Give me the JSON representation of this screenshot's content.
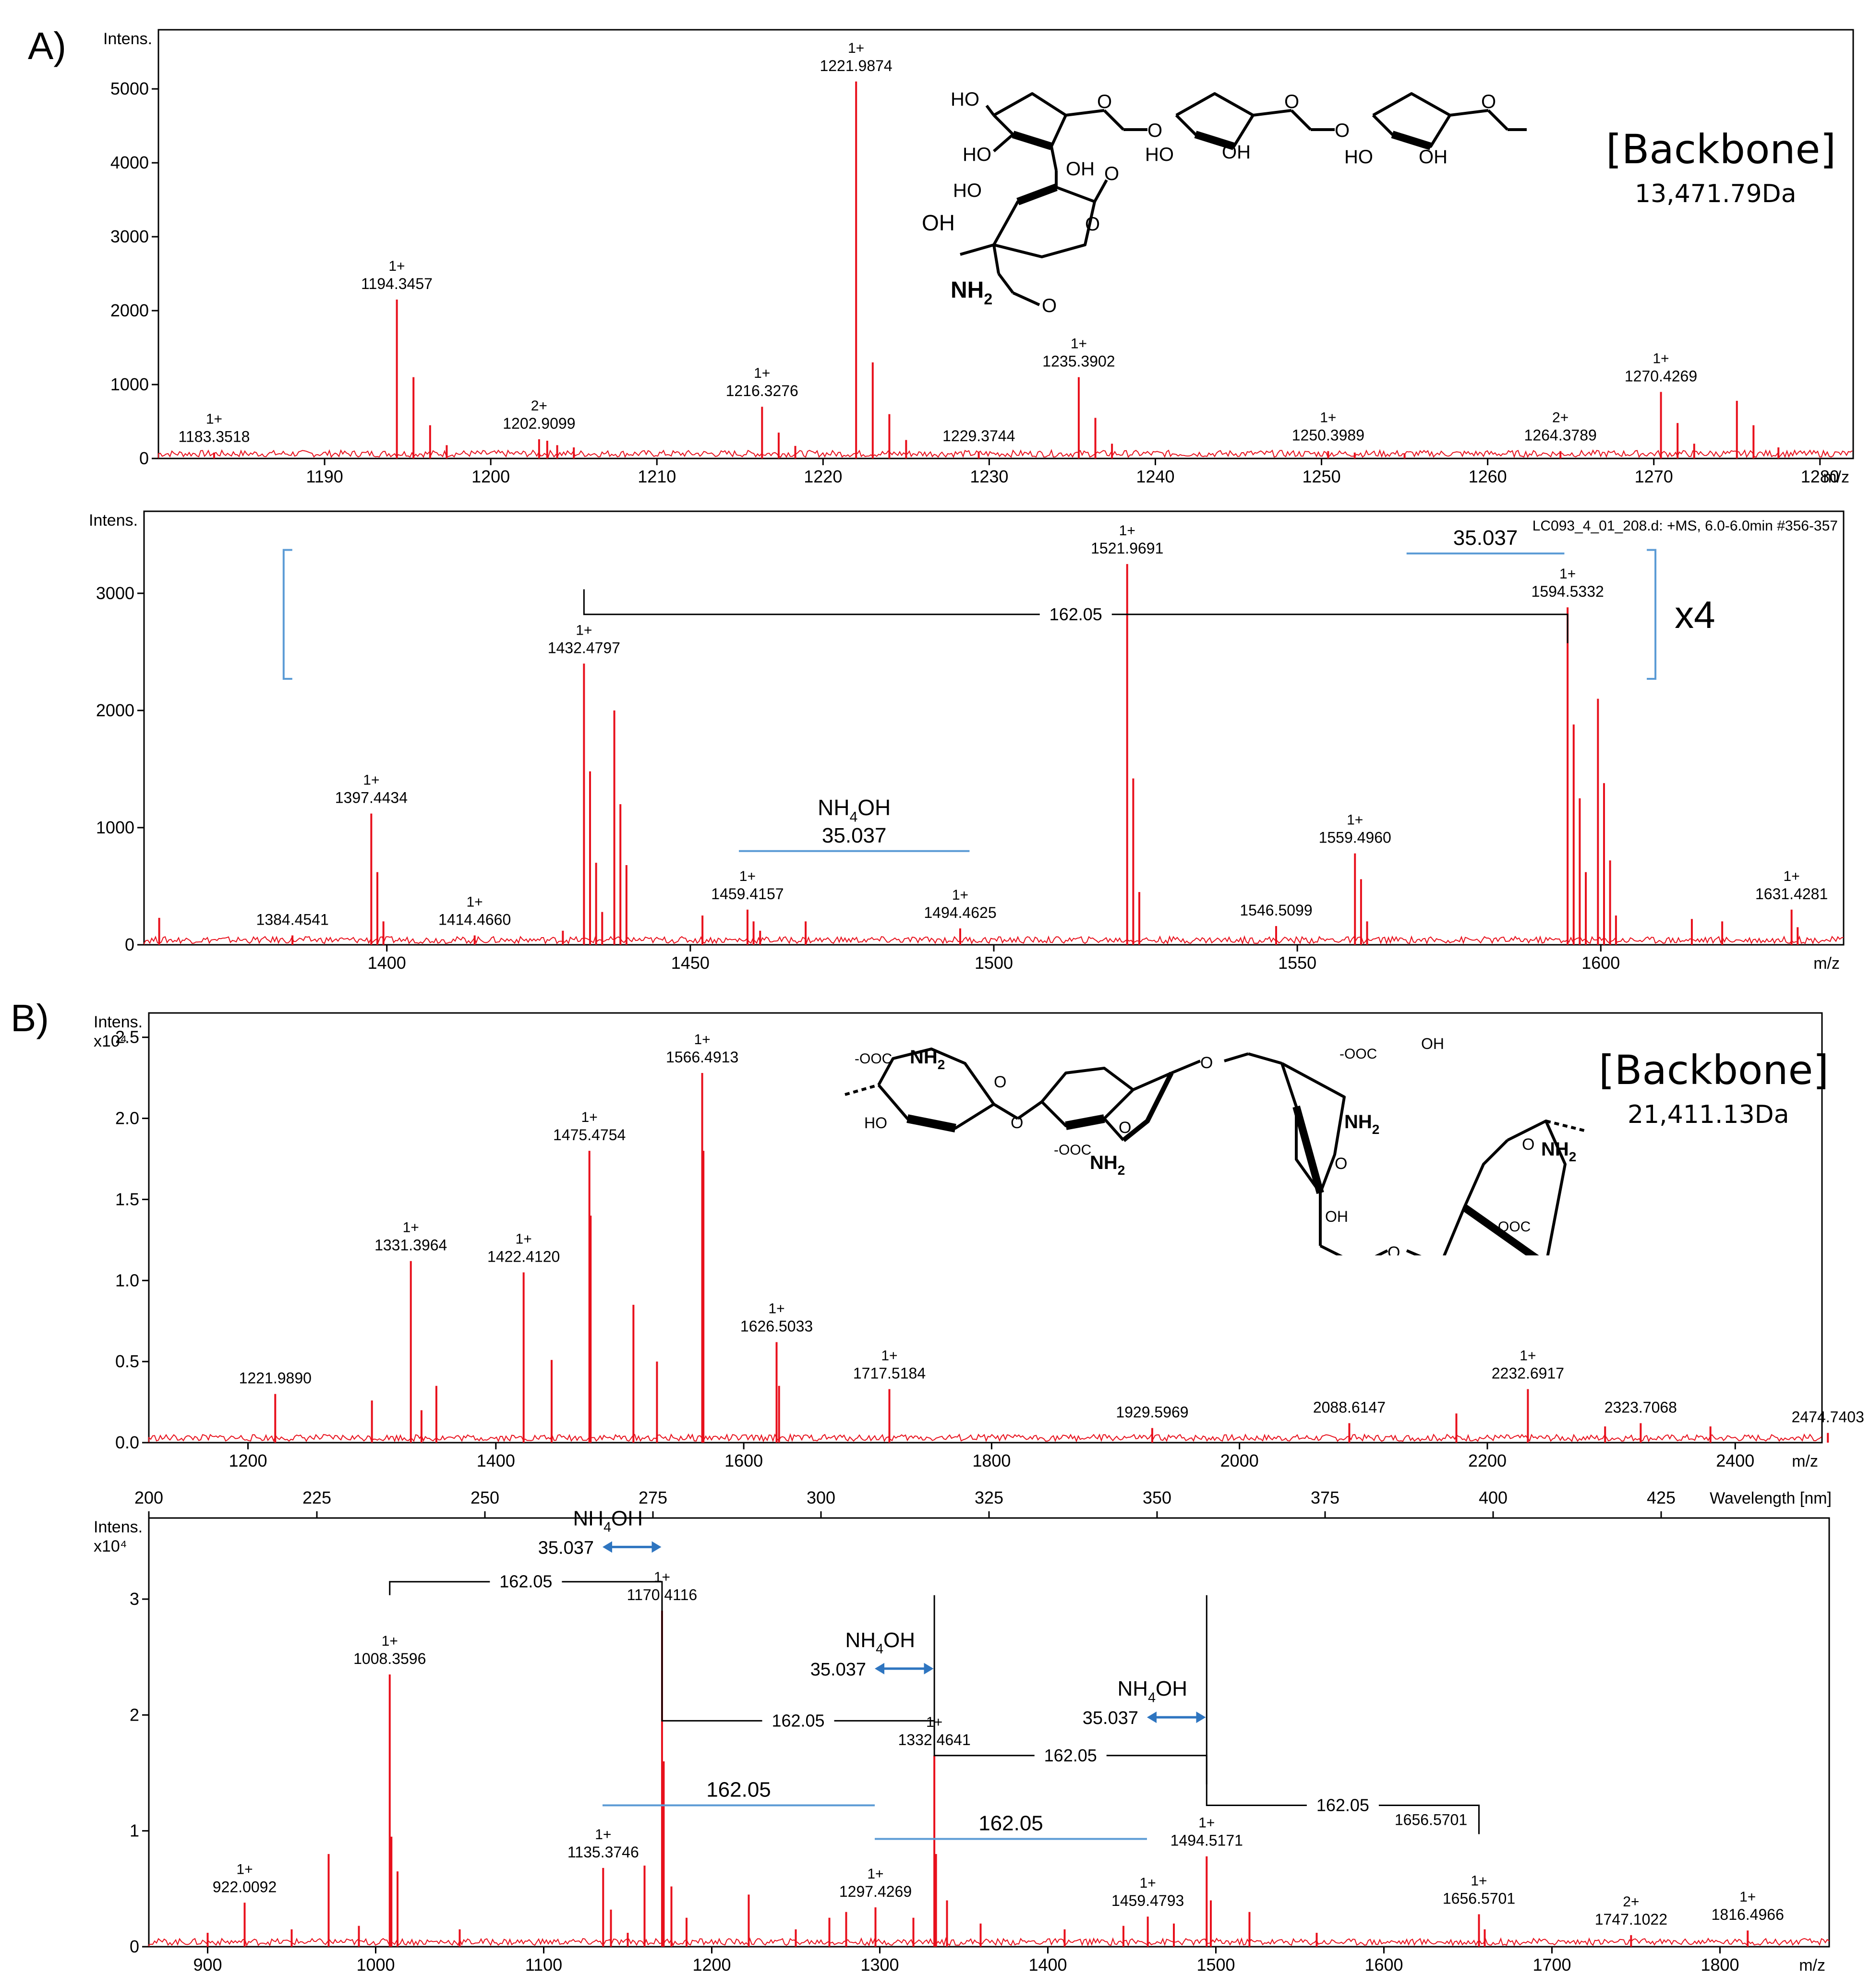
{
  "panel_labels": [
    "A)",
    "B)"
  ],
  "structures": [
    {
      "backbone_label": "[Backbone]",
      "mass": "13,471.79Da",
      "atoms": {
        "oh": "OH",
        "ho": "HO",
        "o": "O",
        "nh2": "NH",
        "sub2": "2"
      }
    },
    {
      "backbone_label": "[Backbone]",
      "mass": "21,411.13Da",
      "atoms": {
        "oh": "OH",
        "ho": "HO",
        "o": "O",
        "nh2": "NH",
        "sub2": "2",
        "coo": "OOC",
        "minus": "-"
      }
    }
  ],
  "colors": {
    "spectrum": "#e8101c",
    "bracket": "#5b9bd5",
    "arrow": "#2e75c0",
    "axis": "#000000"
  },
  "chart_data": [
    {
      "type": "line",
      "y_header": "Intens.",
      "y_multiplier": "",
      "x_unit": "m/z",
      "xlim": [
        1180,
        1282
      ],
      "ylim": [
        0,
        5800
      ],
      "xticks": [
        1190,
        1200,
        1210,
        1220,
        1230,
        1240,
        1250,
        1260,
        1270,
        1280
      ],
      "yticks": [
        0,
        1000,
        2000,
        3000,
        4000,
        5000
      ],
      "ytick_labels": [
        "0",
        "1000",
        "2000",
        "3000",
        "4000",
        "5000"
      ],
      "peaks": [
        [
          1183.35,
          80
        ],
        [
          1194.35,
          2150
        ],
        [
          1195.35,
          1100
        ],
        [
          1196.35,
          450
        ],
        [
          1197.35,
          180
        ],
        [
          1202.91,
          260
        ],
        [
          1203.4,
          240
        ],
        [
          1204.0,
          180
        ],
        [
          1205.0,
          150
        ],
        [
          1216.33,
          700
        ],
        [
          1217.33,
          350
        ],
        [
          1218.33,
          170
        ],
        [
          1221.99,
          5100
        ],
        [
          1222.99,
          1300
        ],
        [
          1223.99,
          600
        ],
        [
          1225.0,
          250
        ],
        [
          1229.37,
          90
        ],
        [
          1235.39,
          1100
        ],
        [
          1236.39,
          550
        ],
        [
          1237.39,
          200
        ],
        [
          1250.4,
          100
        ],
        [
          1252.0,
          80
        ],
        [
          1255.0,
          70
        ],
        [
          1264.38,
          100
        ],
        [
          1270.43,
          900
        ],
        [
          1271.43,
          480
        ],
        [
          1272.43,
          200
        ],
        [
          1275.0,
          780
        ],
        [
          1276.0,
          450
        ],
        [
          1277.5,
          150
        ]
      ],
      "labels": [
        {
          "x": 1183.3518,
          "y": 80,
          "charge": "1+",
          "text": "1183.3518"
        },
        {
          "x": 1194.3457,
          "y": 2150,
          "charge": "1+",
          "text": "1194.3457"
        },
        {
          "x": 1202.9099,
          "y": 260,
          "charge": "2+",
          "text": "1202.9099"
        },
        {
          "x": 1216.3276,
          "y": 700,
          "charge": "1+",
          "text": "1216.3276"
        },
        {
          "x": 1221.9874,
          "y": 5100,
          "charge": "1+",
          "text": "1221.9874"
        },
        {
          "x": 1229.3744,
          "y": 90,
          "charge": "",
          "text": "1229.3744"
        },
        {
          "x": 1235.3902,
          "y": 1100,
          "charge": "1+",
          "text": "1235.3902"
        },
        {
          "x": 1250.3989,
          "y": 100,
          "charge": "1+",
          "text": "1250.3989"
        },
        {
          "x": 1264.3789,
          "y": 100,
          "charge": "2+",
          "text": "1264.3789"
        },
        {
          "x": 1270.4269,
          "y": 900,
          "charge": "1+",
          "text": "1270.4269"
        }
      ],
      "header_text": "",
      "annotations": []
    },
    {
      "type": "line",
      "y_header": "Intens.",
      "y_multiplier": "",
      "x_unit": "m/z",
      "xlim": [
        1360,
        1640
      ],
      "ylim": [
        0,
        3700
      ],
      "xticks": [
        1400,
        1450,
        1500,
        1550,
        1600
      ],
      "yticks": [
        0,
        1000,
        2000,
        3000
      ],
      "ytick_labels": [
        "0",
        "1000",
        "2000",
        "3000"
      ],
      "peaks": [
        [
          1362.5,
          230
        ],
        [
          1384.45,
          80
        ],
        [
          1397.44,
          1120
        ],
        [
          1398.44,
          620
        ],
        [
          1399.44,
          200
        ],
        [
          1414.47,
          80
        ],
        [
          1429.0,
          120
        ],
        [
          1432.48,
          2400
        ],
        [
          1433.48,
          1480
        ],
        [
          1434.48,
          700
        ],
        [
          1435.48,
          280
        ],
        [
          1437.48,
          2000
        ],
        [
          1438.48,
          1200
        ],
        [
          1439.48,
          680
        ],
        [
          1452.0,
          250
        ],
        [
          1459.42,
          300
        ],
        [
          1460.42,
          200
        ],
        [
          1461.5,
          120
        ],
        [
          1469.0,
          200
        ],
        [
          1494.46,
          140
        ],
        [
          1521.97,
          3250
        ],
        [
          1522.97,
          1420
        ],
        [
          1523.97,
          450
        ],
        [
          1546.51,
          160
        ],
        [
          1559.5,
          780
        ],
        [
          1560.5,
          560
        ],
        [
          1561.5,
          200
        ],
        [
          1594.53,
          2880
        ],
        [
          1595.53,
          1880
        ],
        [
          1596.53,
          1250
        ],
        [
          1597.53,
          620
        ],
        [
          1599.53,
          2100
        ],
        [
          1600.53,
          1380
        ],
        [
          1601.53,
          720
        ],
        [
          1602.5,
          250
        ],
        [
          1615.0,
          220
        ],
        [
          1620.0,
          200
        ],
        [
          1631.43,
          300
        ],
        [
          1632.43,
          150
        ]
      ],
      "labels": [
        {
          "x": 1384.4541,
          "y": 80,
          "charge": "",
          "text": "1384.4541"
        },
        {
          "x": 1397.4434,
          "y": 1120,
          "charge": "1+",
          "text": "1397.4434"
        },
        {
          "x": 1414.466,
          "y": 80,
          "charge": "1+",
          "text": "1414.4660"
        },
        {
          "x": 1432.4797,
          "y": 2400,
          "charge": "1+",
          "text": "1432.4797"
        },
        {
          "x": 1459.4157,
          "y": 300,
          "charge": "1+",
          "text": "1459.4157"
        },
        {
          "x": 1494.4625,
          "y": 140,
          "charge": "1+",
          "text": "1494.4625"
        },
        {
          "x": 1521.9691,
          "y": 3250,
          "charge": "1+",
          "text": "1521.9691"
        },
        {
          "x": 1546.5099,
          "y": 160,
          "charge": "",
          "text": "1546.5099"
        },
        {
          "x": 1559.496,
          "y": 780,
          "charge": "1+",
          "text": "1559.4960"
        },
        {
          "x": 1594.5332,
          "y": 2880,
          "charge": "1+",
          "text": "1594.5332"
        },
        {
          "x": 1631.4281,
          "y": 300,
          "charge": "1+",
          "text": "1631.4281"
        }
      ],
      "header_text": "LC093_4_01_208.d: +MS, 6.0-6.0min #356-357",
      "annotations": [
        {
          "kind": "step",
          "x1": 1432.48,
          "x2": 1594.53,
          "y": 2820,
          "text": "162.05"
        },
        {
          "kind": "line",
          "x1": 1458,
          "x2": 1496,
          "y": 800,
          "text": "35.037",
          "above": "NH4OH",
          "color": "bracket"
        },
        {
          "kind": "line",
          "x1": 1568,
          "x2": 1594,
          "y": 3340,
          "text": "35.037",
          "color": "bracket"
        },
        {
          "kind": "bracket",
          "x1": 1383,
          "x2": 1609,
          "ytop": 3370,
          "ybot": 2270,
          "text": "x4"
        }
      ]
    },
    {
      "type": "line",
      "y_header": "Intens.",
      "y_multiplier": "x10⁴",
      "x_unit": "m/z",
      "xlim": [
        1120,
        2470
      ],
      "ylim": [
        0,
        2.65
      ],
      "xticks": [
        1200,
        1400,
        1600,
        1800,
        2000,
        2200,
        2400
      ],
      "yticks": [
        0,
        0.5,
        1.0,
        1.5,
        2.0,
        2.5
      ],
      "ytick_labels": [
        "0.0",
        "0.5",
        "1.0",
        "1.5",
        "2.0",
        "2.5"
      ],
      "peaks": [
        [
          1221.99,
          0.3
        ],
        [
          1300.0,
          0.26
        ],
        [
          1331.4,
          1.12
        ],
        [
          1340.0,
          0.2
        ],
        [
          1352.0,
          0.35
        ],
        [
          1422.41,
          1.05
        ],
        [
          1445.0,
          0.51
        ],
        [
          1475.48,
          1.8
        ],
        [
          1476.48,
          1.4
        ],
        [
          1511.0,
          0.85
        ],
        [
          1530.0,
          0.5
        ],
        [
          1566.49,
          2.28
        ],
        [
          1567.49,
          1.8
        ],
        [
          1626.5,
          0.62
        ],
        [
          1628.5,
          0.35
        ],
        [
          1717.52,
          0.33
        ],
        [
          1929.6,
          0.09
        ],
        [
          2088.61,
          0.12
        ],
        [
          2175.0,
          0.18
        ],
        [
          2232.69,
          0.33
        ],
        [
          2323.71,
          0.12
        ],
        [
          2295.0,
          0.1
        ],
        [
          2380.0,
          0.1
        ],
        [
          2474.74,
          0.06
        ]
      ],
      "labels": [
        {
          "x": 1221.989,
          "y": 0.3,
          "charge": "",
          "text": "1221.9890"
        },
        {
          "x": 1331.3964,
          "y": 1.12,
          "charge": "1+",
          "text": "1331.3964"
        },
        {
          "x": 1422.412,
          "y": 1.05,
          "charge": "1+",
          "text": "1422.4120"
        },
        {
          "x": 1475.4754,
          "y": 1.8,
          "charge": "1+",
          "text": "1475.4754"
        },
        {
          "x": 1566.4913,
          "y": 2.28,
          "charge": "1+",
          "text": "1566.4913"
        },
        {
          "x": 1626.5033,
          "y": 0.62,
          "charge": "1+",
          "text": "1626.5033"
        },
        {
          "x": 1717.5184,
          "y": 0.33,
          "charge": "1+",
          "text": "1717.5184"
        },
        {
          "x": 1929.5969,
          "y": 0.09,
          "charge": "",
          "text": "1929.5969"
        },
        {
          "x": 2088.6147,
          "y": 0.12,
          "charge": "",
          "text": "2088.6147"
        },
        {
          "x": 2232.6917,
          "y": 0.33,
          "charge": "1+",
          "text": "2232.6917"
        },
        {
          "x": 2323.7068,
          "y": 0.12,
          "charge": "",
          "text": "2323.7068"
        },
        {
          "x": 2474.7403,
          "y": 0.06,
          "charge": "",
          "text": "2474.7403"
        }
      ],
      "header_text": "",
      "annotations": []
    },
    {
      "type": "line",
      "y_header": "Intens.",
      "y_multiplier": "x10⁴",
      "x_unit": "m/z",
      "xlim": [
        865,
        1865
      ],
      "ylim": [
        0,
        3.7
      ],
      "xticks": [
        900,
        1000,
        1100,
        1200,
        1300,
        1400,
        1500,
        1600,
        1700,
        1800
      ],
      "yticks": [
        0,
        1,
        2,
        3
      ],
      "ytick_labels": [
        "0",
        "1",
        "2",
        "3"
      ],
      "top_axis": {
        "ticks": [
          200,
          225,
          250,
          275,
          300,
          325,
          350,
          375,
          400,
          425
        ],
        "min": 200,
        "max": 450,
        "unit": "Wavelength [nm]"
      },
      "peaks": [
        [
          900.0,
          0.12
        ],
        [
          922.01,
          0.38
        ],
        [
          950.0,
          0.15
        ],
        [
          972.0,
          0.8
        ],
        [
          990.0,
          0.18
        ],
        [
          1008.36,
          2.35
        ],
        [
          1009.36,
          0.95
        ],
        [
          1013.0,
          0.65
        ],
        [
          1050.0,
          0.15
        ],
        [
          1135.37,
          0.68
        ],
        [
          1140.0,
          0.32
        ],
        [
          1150.0,
          0.12
        ],
        [
          1160.0,
          0.7
        ],
        [
          1170.41,
          2.9
        ],
        [
          1171.41,
          1.6
        ],
        [
          1176.0,
          0.52
        ],
        [
          1185.0,
          0.25
        ],
        [
          1222.0,
          0.45
        ],
        [
          1250.0,
          0.15
        ],
        [
          1270.0,
          0.25
        ],
        [
          1280.0,
          0.3
        ],
        [
          1297.43,
          0.34
        ],
        [
          1320.0,
          0.25
        ],
        [
          1332.46,
          1.65
        ],
        [
          1333.46,
          0.8
        ],
        [
          1340.0,
          0.4
        ],
        [
          1360.0,
          0.2
        ],
        [
          1410.0,
          0.15
        ],
        [
          1445.0,
          0.18
        ],
        [
          1459.48,
          0.26
        ],
        [
          1475.0,
          0.2
        ],
        [
          1494.52,
          0.78
        ],
        [
          1497.0,
          0.4
        ],
        [
          1520.0,
          0.3
        ],
        [
          1560.0,
          0.12
        ],
        [
          1656.57,
          0.28
        ],
        [
          1660.0,
          0.15
        ],
        [
          1747.1,
          0.1
        ],
        [
          1816.5,
          0.14
        ]
      ],
      "labels": [
        {
          "x": 922.0092,
          "y": 0.38,
          "charge": "1+",
          "text": "922.0092"
        },
        {
          "x": 1008.3596,
          "y": 2.35,
          "charge": "1+",
          "text": "1008.3596"
        },
        {
          "x": 1135.3746,
          "y": 0.68,
          "charge": "1+",
          "text": "1135.3746"
        },
        {
          "x": 1170.4116,
          "y": 2.9,
          "charge": "1+",
          "text": "1170.4116"
        },
        {
          "x": 1297.4269,
          "y": 0.34,
          "charge": "1+",
          "text": "1297.4269"
        },
        {
          "x": 1332.4641,
          "y": 1.65,
          "charge": "1+",
          "text": "1332.4641"
        },
        {
          "x": 1459.4793,
          "y": 0.26,
          "charge": "1+",
          "text": "1459.4793"
        },
        {
          "x": 1494.5171,
          "y": 0.78,
          "charge": "1+",
          "text": "1494.5171"
        },
        {
          "x": 1656.5701,
          "y": 0.28,
          "charge": "1+",
          "text": "1656.5701"
        },
        {
          "x": 1747.1022,
          "y": 0.1,
          "charge": "2+",
          "text": "1747.1022"
        },
        {
          "x": 1816.4966,
          "y": 0.14,
          "charge": "1+",
          "text": "1816.4966"
        }
      ],
      "header_text": "",
      "annotations": [
        {
          "kind": "step",
          "x1": 1008.36,
          "x2": 1170.41,
          "y": 3.15,
          "text": "162.05"
        },
        {
          "kind": "step",
          "x1": 1170.41,
          "x2": 1332.46,
          "y": 1.95,
          "text": "162.05"
        },
        {
          "kind": "step",
          "x1": 1332.46,
          "x2": 1494.52,
          "y": 1.65,
          "text": "162.05"
        },
        {
          "kind": "step",
          "x1": 1494.52,
          "x2": 1656.57,
          "y": 1.22,
          "text": "162.05"
        },
        {
          "kind": "float",
          "x": 1628,
          "y": 1.05,
          "text": "1656.5701"
        },
        {
          "kind": "line",
          "x1": 1135,
          "x2": 1297,
          "y": 1.22,
          "text": "162.05",
          "color": "bracket"
        },
        {
          "kind": "line",
          "x1": 1297,
          "x2": 1459,
          "y": 0.93,
          "text": "162.05",
          "color": "bracket"
        },
        {
          "kind": "arrow",
          "x1": 1135,
          "x2": 1170,
          "y": 3.45,
          "text": "35.037",
          "above": "NH4OH"
        },
        {
          "kind": "arrow",
          "x1": 1297,
          "x2": 1332,
          "y": 2.4,
          "text": "35.037",
          "above": "NH4OH"
        },
        {
          "kind": "arrow",
          "x1": 1459,
          "x2": 1494,
          "y": 1.98,
          "text": "35.037",
          "above": "NH4OH"
        }
      ]
    }
  ]
}
